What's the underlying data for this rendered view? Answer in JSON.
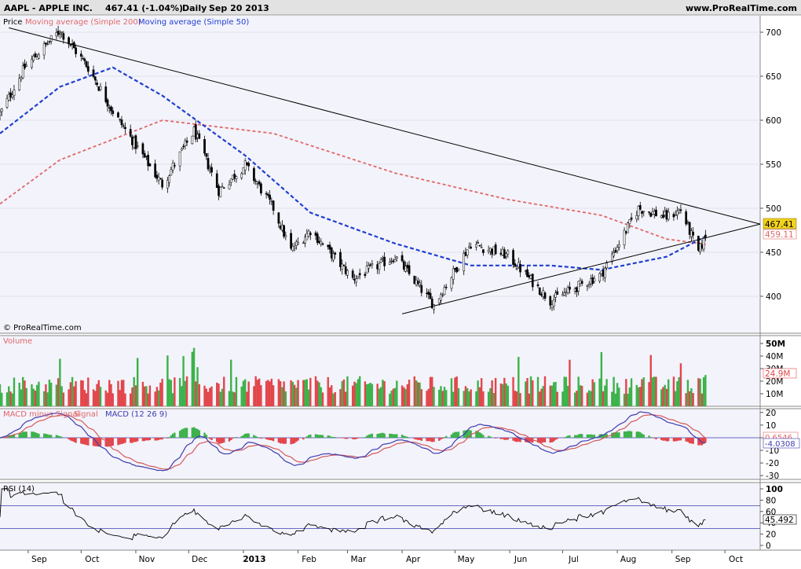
{
  "header": {
    "symbol": "AAPL - APPLE INC.",
    "quote": "467.41 (-1.04%)",
    "period": "Daily",
    "date": "Sep 20 2013",
    "site": "www.ProRealTime.com"
  },
  "panels": {
    "price": {
      "legend_price": "Price",
      "legend_ma200": "Moving average (Simple 200)",
      "legend_ma50": "Moving average (Simple 50)",
      "copyright": "© ProRealTime.com",
      "last_value": "467.41",
      "ma200_value": "459.11",
      "ticks": [
        "700",
        "650",
        "600",
        "550",
        "500",
        "450",
        "400"
      ]
    },
    "volume": {
      "title": "Volume",
      "last_value": "24.9M",
      "ticks": [
        "50M",
        "40M",
        "30M",
        "20M",
        "10M"
      ]
    },
    "macd": {
      "title_hist": "MACD minus Signal",
      "title_signal": "Signal",
      "title_macd": "MACD (12 26 9)",
      "macd_value": "0.6546",
      "signal_value": "-4.0308",
      "ticks": [
        "20",
        "10",
        "0",
        "-10",
        "-20",
        "-30"
      ]
    },
    "rsi": {
      "title": "RSI (14)",
      "last_value": "45.492",
      "ticks": [
        "100",
        "80",
        "60",
        "40",
        "20",
        "0"
      ]
    }
  },
  "x_axis": {
    "labels": [
      "Sep",
      "Oct",
      "Nov",
      "Dec",
      "2013",
      "Feb",
      "Mar",
      "Apr",
      "May",
      "Jun",
      "Jul",
      "Aug",
      "Sep",
      "Oct"
    ]
  },
  "colors": {
    "ma200": "#e06868",
    "ma50": "#1f3fd0",
    "up": "#3cb24a",
    "down": "#e2464b",
    "macd": "#3d3db0",
    "signal": "#d35a5a",
    "last_price_bg": "#f2d21e"
  },
  "chart_data": {
    "type": "candlestick",
    "x_range": [
      "2012-08-16",
      "2013-10-21"
    ],
    "price_ylim": [
      375,
      715
    ],
    "trend_lines": [
      {
        "name": "resistance",
        "from": [
          "2012-08-21",
          705
        ],
        "to": [
          "2013-10-21",
          482
        ]
      },
      {
        "name": "support",
        "from": [
          "2013-04-01",
          380
        ],
        "to": [
          "2013-10-21",
          482
        ]
      }
    ],
    "price_path": [
      [
        "2012-08-16",
        607
      ],
      [
        "2012-08-30",
        660
      ],
      [
        "2012-09-19",
        702
      ],
      [
        "2012-10-05",
        660
      ],
      [
        "2012-10-19",
        610
      ],
      [
        "2012-11-16",
        527
      ],
      [
        "2012-12-04",
        588
      ],
      [
        "2012-12-18",
        520
      ],
      [
        "2013-01-02",
        549
      ],
      [
        "2013-01-18",
        500
      ],
      [
        "2013-01-28",
        452
      ],
      [
        "2013-02-08",
        475
      ],
      [
        "2013-03-04",
        420
      ],
      [
        "2013-03-28",
        445
      ],
      [
        "2013-04-19",
        390
      ],
      [
        "2013-05-10",
        460
      ],
      [
        "2013-05-31",
        446
      ],
      [
        "2013-06-24",
        395
      ],
      [
        "2013-07-23",
        425
      ],
      [
        "2013-08-13",
        500
      ],
      [
        "2013-08-29",
        490
      ],
      [
        "2013-09-06",
        498
      ],
      [
        "2013-09-16",
        450
      ],
      [
        "2013-09-20",
        467.41
      ]
    ],
    "ma200_path": [
      [
        "2012-08-16",
        505
      ],
      [
        "2012-09-19",
        555
      ],
      [
        "2012-11-16",
        600
      ],
      [
        "2013-01-18",
        585
      ],
      [
        "2013-03-28",
        540
      ],
      [
        "2013-05-31",
        510
      ],
      [
        "2013-07-23",
        492
      ],
      [
        "2013-08-29",
        465
      ],
      [
        "2013-09-20",
        459.11
      ]
    ],
    "ma50_path": [
      [
        "2012-08-16",
        585
      ],
      [
        "2012-09-19",
        638
      ],
      [
        "2012-10-19",
        660
      ],
      [
        "2012-11-16",
        628
      ],
      [
        "2013-01-02",
        560
      ],
      [
        "2013-02-08",
        495
      ],
      [
        "2013-03-28",
        460
      ],
      [
        "2013-05-10",
        435
      ],
      [
        "2013-06-24",
        435
      ],
      [
        "2013-07-23",
        430
      ],
      [
        "2013-08-29",
        445
      ],
      [
        "2013-09-20",
        468
      ]
    ],
    "volume_ylim": [
      0,
      55
    ],
    "volume_unit": "M",
    "volume_last": 24.9,
    "macd_ylim": [
      -33,
      23
    ],
    "macd_last": 0.6546,
    "signal_last": -4.0308,
    "rsi_ylim": [
      0,
      100
    ],
    "rsi_levels": [
      70,
      30
    ],
    "rsi_last": 45.492
  }
}
